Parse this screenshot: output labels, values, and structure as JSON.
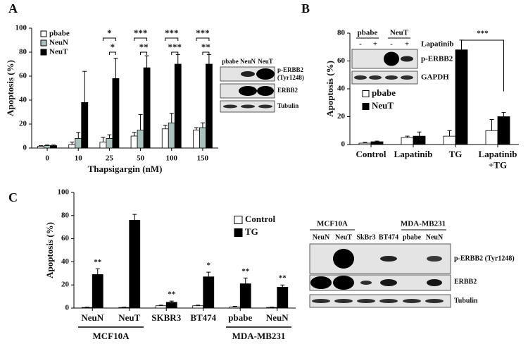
{
  "chart_data": [
    {
      "type": "bar",
      "panel_label": "A",
      "x_label": "Thapsigargin (nM)",
      "y_label": "Apoptosis (%)",
      "categories": [
        "0",
        "10",
        "25",
        "50",
        "100",
        "150"
      ],
      "ylim": [
        0,
        100
      ],
      "yticks": [
        0,
        20,
        40,
        60,
        80,
        100
      ],
      "legend": "upper left",
      "series": [
        {
          "name": "pbabe",
          "color": "#ffffff",
          "values": [
            1.5,
            3,
            5,
            10,
            16,
            15
          ],
          "errors": [
            0.5,
            2,
            4,
            3,
            3,
            2
          ]
        },
        {
          "name": "NeuN",
          "color": "#a9c2bd",
          "values": [
            2,
            8,
            8,
            15,
            21,
            17
          ],
          "errors": [
            0.5,
            5,
            3,
            13,
            8,
            4
          ]
        },
        {
          "name": "NeuT",
          "color": "#000000",
          "values": [
            2,
            38,
            58,
            67,
            70,
            70
          ],
          "errors": [
            0.5,
            26,
            17,
            10,
            8,
            8
          ]
        }
      ],
      "significance": [
        null,
        null,
        [
          "*",
          "*"
        ],
        [
          "***",
          "**"
        ],
        [
          "***",
          "***"
        ],
        [
          "***",
          "**"
        ]
      ]
    },
    {
      "type": "bar",
      "panel_label": "B",
      "y_label": "Apoptosis (%)",
      "categories": [
        "Control",
        "Lapatinib",
        "TG",
        "Lapatinib\n+TG"
      ],
      "ylim": [
        0,
        80
      ],
      "yticks": [
        0,
        20,
        40,
        60,
        80
      ],
      "legend": "center left",
      "series": [
        {
          "name": "pbabe",
          "color": "#ffffff",
          "values": [
            1,
            5,
            6,
            10
          ],
          "errors": [
            0.5,
            1,
            4,
            8
          ]
        },
        {
          "name": "NeuT",
          "color": "#000000",
          "values": [
            2,
            6,
            68,
            20
          ],
          "errors": [
            0.5,
            3,
            7,
            3
          ]
        }
      ],
      "brackets": [
        {
          "categories": [
            2,
            3
          ],
          "label": "***"
        }
      ]
    },
    {
      "type": "bar",
      "panel_label": "C",
      "y_label": "Apoptosis (%)",
      "categories": [
        "NeuN",
        "NeuT",
        "SKBR3",
        "BT474",
        "pbabe",
        "NeuN"
      ],
      "groups": [
        {
          "label": "MCF10A",
          "categories": [
            0,
            1
          ]
        },
        {
          "label": "MDA-MB231",
          "categories": [
            4,
            5
          ]
        }
      ],
      "ylim": [
        0,
        100
      ],
      "yticks": [
        0,
        20,
        40,
        60,
        80,
        100
      ],
      "legend": "right",
      "series": [
        {
          "name": "Control",
          "color": "#ffffff",
          "values": [
            0.5,
            0.5,
            2,
            2,
            1,
            0.5
          ],
          "errors": [
            0.3,
            0.3,
            0.5,
            0.5,
            0.5,
            0.3
          ]
        },
        {
          "name": "TG",
          "color": "#000000",
          "values": [
            29,
            76,
            5,
            27,
            21,
            18
          ],
          "errors": [
            5,
            5,
            1,
            4,
            5,
            2
          ]
        }
      ],
      "significance": [
        "**",
        null,
        "**",
        "*",
        "**",
        "**"
      ]
    }
  ],
  "blots": {
    "A": {
      "lanes": [
        "pbabe",
        "NeuN",
        "NeuT"
      ],
      "rows": [
        "p-ERBB2\n(Tyr1248)",
        "ERBB2",
        "Tubulin"
      ]
    },
    "B": {
      "groups": [
        "pbabe",
        "NeuT"
      ],
      "treatment": "Lapatinib",
      "signs": [
        "-",
        "+",
        "-",
        "+"
      ],
      "rows": [
        "p-ERBB2",
        "GAPDH"
      ]
    },
    "C": {
      "groups": [
        "MCF10A",
        "MDA-MB231"
      ],
      "lanes": [
        "NeuN",
        "NeuT",
        "SkBr3",
        "BT474",
        "pbabe",
        "NeuN"
      ],
      "rows": [
        "p-ERBB2 (Tyr1248)",
        "ERBB2",
        "Tubulin"
      ]
    }
  }
}
